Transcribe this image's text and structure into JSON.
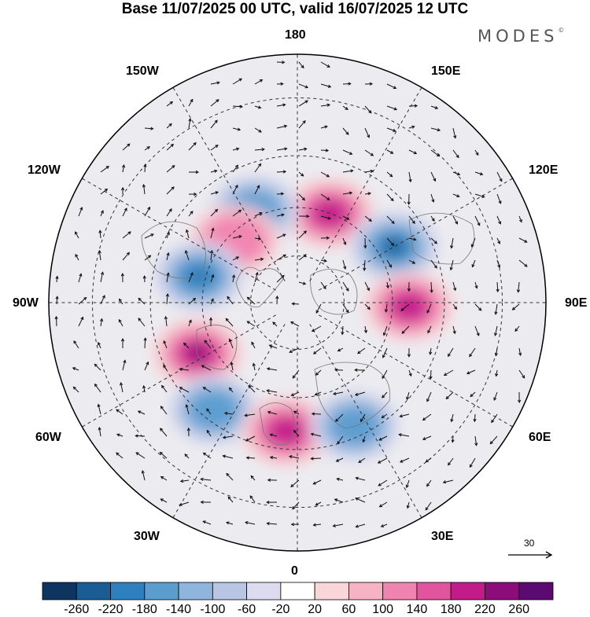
{
  "header": {
    "title": "Base 11/07/2025 00 UTC, valid 16/07/2025 12 UTC",
    "logo": "MODES",
    "logo_mark": "©"
  },
  "map": {
    "projection": "north-polar-stereographic",
    "longitude_labels": {
      "top": "180",
      "bottom": "0",
      "left": "90W",
      "right": "90E",
      "upper_left_1": "150W",
      "upper_left_2": "120W",
      "lower_left_1": "60W",
      "lower_left_2": "30W",
      "upper_right_1": "150E",
      "upper_right_2": "120E",
      "lower_right_1": "60E",
      "lower_right_2": "30E"
    },
    "meridians_deg": [
      0,
      30,
      60,
      90,
      120,
      150,
      180,
      210,
      240,
      270,
      300,
      330
    ],
    "latitude_circles_deg": [
      30,
      45,
      60,
      75
    ],
    "anomalies": [
      {
        "name": "high-north-pacific-siberia",
        "lon": 160,
        "lat": 60,
        "value": 200
      },
      {
        "name": "low-east-siberia",
        "lon": 120,
        "lat": 55,
        "value": -240
      },
      {
        "name": "high-central-asia",
        "lon": 88,
        "lat": 55,
        "value": 200
      },
      {
        "name": "low-alaska-gulf",
        "lon": 205,
        "lat": 58,
        "value": -160
      },
      {
        "name": "high-alaska",
        "lon": 225,
        "lat": 62,
        "value": 100
      },
      {
        "name": "low-canada",
        "lon": 255,
        "lat": 58,
        "value": -180
      },
      {
        "name": "high-labrador",
        "lon": 297,
        "lat": 55,
        "value": 220
      },
      {
        "name": "low-north-atlantic",
        "lon": 322,
        "lat": 48,
        "value": -150
      },
      {
        "name": "high-western-europe",
        "lon": 355,
        "lat": 50,
        "value": 180
      },
      {
        "name": "low-eastern-europe",
        "lon": 25,
        "lat": 48,
        "value": -150
      }
    ]
  },
  "reference_vector": {
    "label": "30"
  },
  "colorbar": {
    "labels": [
      "-260",
      "-220",
      "-180",
      "-140",
      "-100",
      "-60",
      "-20",
      "20",
      "60",
      "100",
      "140",
      "180",
      "220",
      "260"
    ],
    "colors": [
      "#0d3560",
      "#1a5d94",
      "#2e7fbd",
      "#5b9dcf",
      "#8fb5dc",
      "#b8c6e4",
      "#dcdbef",
      "#ffffff",
      "#f8d6da",
      "#f5b3c3",
      "#f084b0",
      "#e0559e",
      "#c21b8a",
      "#8c0d79",
      "#5a0a70"
    ]
  }
}
